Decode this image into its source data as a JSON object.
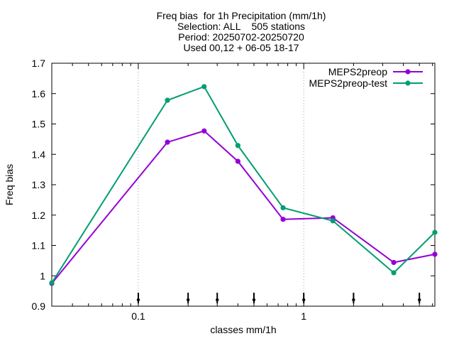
{
  "chart_data": {
    "type": "line",
    "title_lines": [
      "Freq bias  for 1h Precipitation (mm/1h)",
      "Selection: ALL    505 stations",
      "Period: 20250702-20250720",
      "Used 00,12 + 06-05 18-17"
    ],
    "xlabel": "classes mm/1h",
    "ylabel": "Freq bias",
    "xscale": "log",
    "xlim": [
      0.03,
      6.2
    ],
    "ylim": [
      0.9,
      1.7
    ],
    "x_ticks": [
      {
        "value": 0.1,
        "label": "0.1"
      },
      {
        "value": 1,
        "label": "1"
      }
    ],
    "y_ticks": [
      {
        "value": 0.9,
        "label": "0.9"
      },
      {
        "value": 1.0,
        "label": "1"
      },
      {
        "value": 1.1,
        "label": "1.1"
      },
      {
        "value": 1.2,
        "label": "1.2"
      },
      {
        "value": 1.3,
        "label": "1.3"
      },
      {
        "value": 1.4,
        "label": "1.4"
      },
      {
        "value": 1.5,
        "label": "1.5"
      },
      {
        "value": 1.6,
        "label": "1.6"
      },
      {
        "value": 1.7,
        "label": "1.7"
      }
    ],
    "grid": true,
    "legend_position": "top-right",
    "threshold_markers": [
      0.1,
      0.2,
      0.3,
      0.5,
      1,
      2,
      5
    ],
    "series": [
      {
        "name": "MEPS2preop",
        "color": "#9400d3",
        "x": [
          0.03,
          0.15,
          0.25,
          0.4,
          0.75,
          1.5,
          3.5,
          6.2
        ],
        "y": [
          0.975,
          1.44,
          1.477,
          1.377,
          1.186,
          1.191,
          1.044,
          1.071
        ]
      },
      {
        "name": "MEPS2preop-test",
        "color": "#009e73",
        "x": [
          0.03,
          0.15,
          0.25,
          0.4,
          0.75,
          1.5,
          3.5,
          6.2
        ],
        "y": [
          0.977,
          1.578,
          1.623,
          1.429,
          1.224,
          1.181,
          1.01,
          1.143
        ]
      }
    ]
  }
}
